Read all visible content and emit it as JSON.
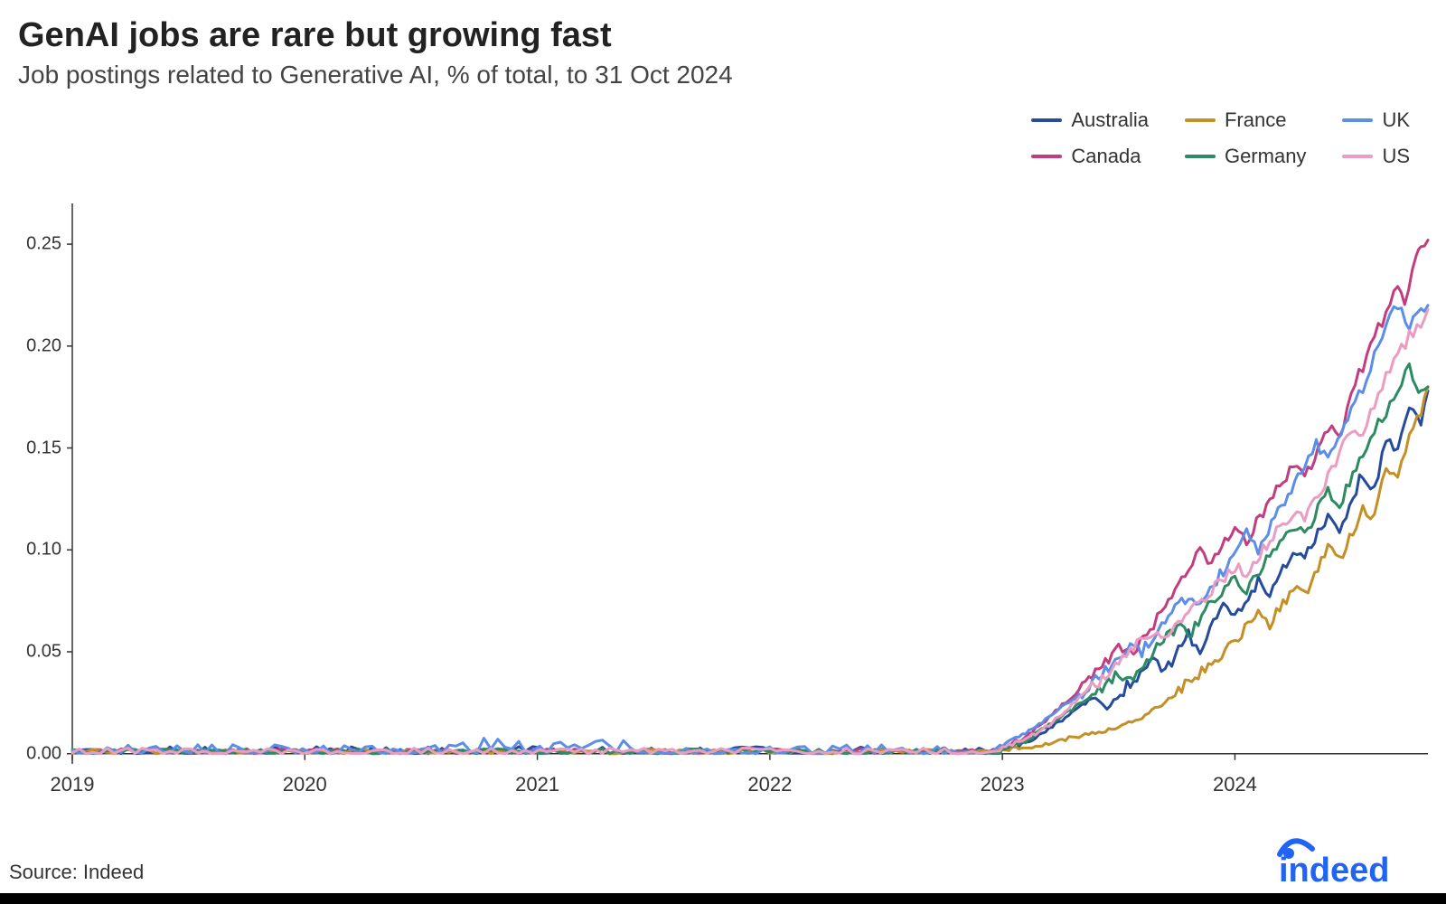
{
  "title": "GenAI jobs are rare but growing fast",
  "subtitle": "Job postings related to Generative AI, % of total, to 31 Oct 2024",
  "source_text": "Source: Indeed",
  "logo_text": "indeed",
  "logo_color": "#2164f3",
  "chart": {
    "type": "line",
    "background_color": "#ffffff",
    "axis_color": "#333333",
    "line_width": 3,
    "title_fontsize": 38,
    "subtitle_fontsize": 28,
    "tick_fontsize": 20,
    "x_range": [
      2019.0,
      2024.83
    ],
    "y_range": [
      -0.005,
      0.27
    ],
    "y_ticks": [
      0.0,
      0.05,
      0.1,
      0.15,
      0.2,
      0.25
    ],
    "y_tick_labels": [
      "0.00",
      "0.05",
      "0.10",
      "0.15",
      "0.20",
      "0.25"
    ],
    "x_ticks": [
      2019,
      2020,
      2021,
      2022,
      2023,
      2024
    ],
    "x_tick_labels": [
      "2019",
      "2020",
      "2021",
      "2022",
      "2023",
      "2024"
    ],
    "legend": {
      "position": "top-right",
      "fontsize": 22,
      "items": [
        "Australia",
        "France",
        "UK",
        "Canada",
        "Germany",
        "US"
      ]
    },
    "series": {
      "Australia": {
        "color": "#254b9c",
        "flat_noise": 0.0025,
        "rise": [
          [
            2023.0,
            0.003
          ],
          [
            2023.1,
            0.005
          ],
          [
            2023.2,
            0.012
          ],
          [
            2023.3,
            0.02
          ],
          [
            2023.4,
            0.028
          ],
          [
            2023.45,
            0.022
          ],
          [
            2023.55,
            0.035
          ],
          [
            2023.65,
            0.045
          ],
          [
            2023.7,
            0.04
          ],
          [
            2023.8,
            0.058
          ],
          [
            2023.85,
            0.052
          ],
          [
            2023.95,
            0.072
          ],
          [
            2024.0,
            0.068
          ],
          [
            2024.1,
            0.085
          ],
          [
            2024.15,
            0.078
          ],
          [
            2024.25,
            0.1
          ],
          [
            2024.3,
            0.095
          ],
          [
            2024.4,
            0.118
          ],
          [
            2024.45,
            0.11
          ],
          [
            2024.55,
            0.138
          ],
          [
            2024.6,
            0.13
          ],
          [
            2024.65,
            0.155
          ],
          [
            2024.7,
            0.148
          ],
          [
            2024.75,
            0.17
          ],
          [
            2024.8,
            0.162
          ],
          [
            2024.83,
            0.178
          ]
        ]
      },
      "Canada": {
        "color": "#c33d7e",
        "flat_noise": 0.0015,
        "rise": [
          [
            2023.0,
            0.003
          ],
          [
            2023.1,
            0.008
          ],
          [
            2023.2,
            0.018
          ],
          [
            2023.3,
            0.028
          ],
          [
            2023.4,
            0.04
          ],
          [
            2023.5,
            0.052
          ],
          [
            2023.55,
            0.048
          ],
          [
            2023.65,
            0.062
          ],
          [
            2023.7,
            0.075
          ],
          [
            2023.8,
            0.09
          ],
          [
            2023.85,
            0.1
          ],
          [
            2023.9,
            0.094
          ],
          [
            2024.0,
            0.11
          ],
          [
            2024.05,
            0.104
          ],
          [
            2024.15,
            0.125
          ],
          [
            2024.25,
            0.14
          ],
          [
            2024.3,
            0.135
          ],
          [
            2024.4,
            0.16
          ],
          [
            2024.45,
            0.155
          ],
          [
            2024.5,
            0.178
          ],
          [
            2024.55,
            0.19
          ],
          [
            2024.6,
            0.205
          ],
          [
            2024.65,
            0.215
          ],
          [
            2024.7,
            0.23
          ],
          [
            2024.73,
            0.222
          ],
          [
            2024.78,
            0.245
          ],
          [
            2024.8,
            0.25
          ],
          [
            2024.83,
            0.252
          ]
        ]
      },
      "France": {
        "color": "#c49026",
        "flat_noise": 0.0012,
        "rise": [
          [
            2023.0,
            0.002
          ],
          [
            2023.1,
            0.003
          ],
          [
            2023.2,
            0.005
          ],
          [
            2023.3,
            0.008
          ],
          [
            2023.4,
            0.01
          ],
          [
            2023.5,
            0.013
          ],
          [
            2023.6,
            0.018
          ],
          [
            2023.7,
            0.025
          ],
          [
            2023.8,
            0.035
          ],
          [
            2023.9,
            0.045
          ],
          [
            2024.0,
            0.055
          ],
          [
            2024.1,
            0.068
          ],
          [
            2024.15,
            0.063
          ],
          [
            2024.25,
            0.082
          ],
          [
            2024.3,
            0.078
          ],
          [
            2024.4,
            0.1
          ],
          [
            2024.45,
            0.095
          ],
          [
            2024.55,
            0.12
          ],
          [
            2024.6,
            0.115
          ],
          [
            2024.65,
            0.14
          ],
          [
            2024.7,
            0.135
          ],
          [
            2024.75,
            0.158
          ],
          [
            2024.8,
            0.168
          ],
          [
            2024.83,
            0.18
          ]
        ]
      },
      "Germany": {
        "color": "#2d8a62",
        "flat_noise": 0.0015,
        "rise": [
          [
            2023.0,
            0.002
          ],
          [
            2023.1,
            0.006
          ],
          [
            2023.2,
            0.014
          ],
          [
            2023.3,
            0.022
          ],
          [
            2023.4,
            0.03
          ],
          [
            2023.5,
            0.04
          ],
          [
            2023.55,
            0.036
          ],
          [
            2023.65,
            0.05
          ],
          [
            2023.75,
            0.062
          ],
          [
            2023.8,
            0.058
          ],
          [
            2023.9,
            0.075
          ],
          [
            2024.0,
            0.085
          ],
          [
            2024.05,
            0.08
          ],
          [
            2024.15,
            0.098
          ],
          [
            2024.25,
            0.112
          ],
          [
            2024.3,
            0.108
          ],
          [
            2024.4,
            0.128
          ],
          [
            2024.45,
            0.122
          ],
          [
            2024.55,
            0.148
          ],
          [
            2024.6,
            0.158
          ],
          [
            2024.65,
            0.168
          ],
          [
            2024.7,
            0.18
          ],
          [
            2024.75,
            0.19
          ],
          [
            2024.78,
            0.182
          ],
          [
            2024.8,
            0.176
          ],
          [
            2024.83,
            0.18
          ]
        ]
      },
      "UK": {
        "color": "#5b8ee6",
        "flat_noise": 0.0035,
        "rise": [
          [
            2023.0,
            0.004
          ],
          [
            2023.1,
            0.01
          ],
          [
            2023.2,
            0.018
          ],
          [
            2023.3,
            0.026
          ],
          [
            2023.4,
            0.036
          ],
          [
            2023.5,
            0.048
          ],
          [
            2023.55,
            0.055
          ],
          [
            2023.6,
            0.05
          ],
          [
            2023.7,
            0.065
          ],
          [
            2023.8,
            0.078
          ],
          [
            2023.85,
            0.072
          ],
          [
            2023.95,
            0.09
          ],
          [
            2024.05,
            0.108
          ],
          [
            2024.1,
            0.1
          ],
          [
            2024.2,
            0.122
          ],
          [
            2024.3,
            0.14
          ],
          [
            2024.35,
            0.152
          ],
          [
            2024.4,
            0.145
          ],
          [
            2024.5,
            0.168
          ],
          [
            2024.55,
            0.18
          ],
          [
            2024.6,
            0.195
          ],
          [
            2024.65,
            0.212
          ],
          [
            2024.7,
            0.22
          ],
          [
            2024.75,
            0.21
          ],
          [
            2024.8,
            0.218
          ],
          [
            2024.83,
            0.22
          ]
        ]
      },
      "US": {
        "color": "#eb9cc0",
        "flat_noise": 0.0018,
        "rise": [
          [
            2023.0,
            0.003
          ],
          [
            2023.1,
            0.007
          ],
          [
            2023.2,
            0.014
          ],
          [
            2023.3,
            0.024
          ],
          [
            2023.4,
            0.034
          ],
          [
            2023.5,
            0.044
          ],
          [
            2023.55,
            0.052
          ],
          [
            2023.65,
            0.058
          ],
          [
            2023.7,
            0.055
          ],
          [
            2023.8,
            0.07
          ],
          [
            2023.9,
            0.08
          ],
          [
            2024.0,
            0.092
          ],
          [
            2024.05,
            0.088
          ],
          [
            2024.15,
            0.105
          ],
          [
            2024.25,
            0.118
          ],
          [
            2024.3,
            0.115
          ],
          [
            2024.4,
            0.135
          ],
          [
            2024.45,
            0.148
          ],
          [
            2024.5,
            0.16
          ],
          [
            2024.55,
            0.155
          ],
          [
            2024.6,
            0.172
          ],
          [
            2024.65,
            0.185
          ],
          [
            2024.7,
            0.195
          ],
          [
            2024.75,
            0.205
          ],
          [
            2024.8,
            0.212
          ],
          [
            2024.83,
            0.218
          ]
        ]
      }
    }
  }
}
